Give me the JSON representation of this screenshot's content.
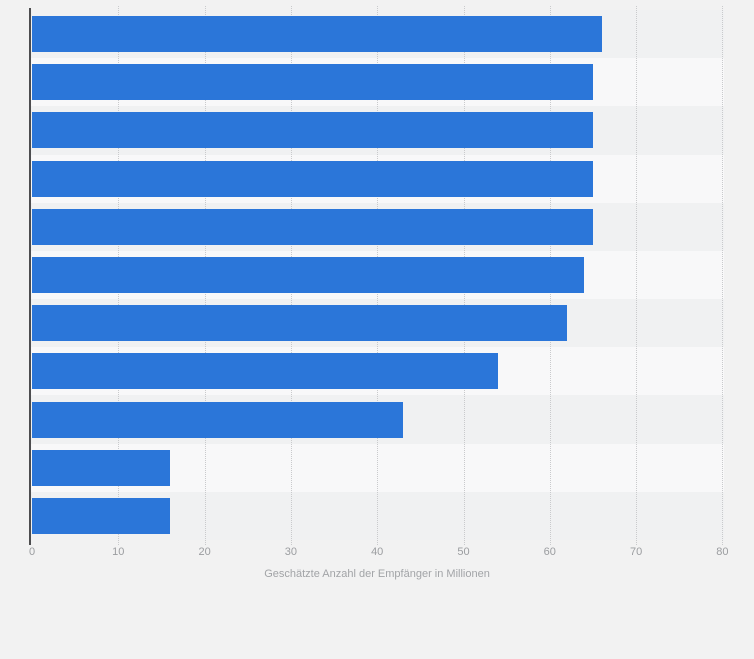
{
  "chart_data": {
    "type": "bar",
    "orientation": "horizontal",
    "title": "",
    "xlabel": "Geschätzte Anzahl der Empfänger in Millionen",
    "ylabel": "",
    "categories": [
      "",
      "",
      "",
      "",
      "",
      "",
      "",
      "",
      "",
      "",
      ""
    ],
    "values": [
      66,
      65,
      65,
      65,
      65,
      64,
      62,
      54,
      43,
      16,
      16
    ],
    "xlim": [
      0,
      80
    ],
    "xticks": [
      0,
      10,
      20,
      30,
      40,
      50,
      60,
      70,
      80
    ],
    "grid": "dotted-vertical",
    "legend": "none"
  },
  "colors": {
    "bar": "#2b76d9",
    "page_background": "#f2f2f2",
    "band_odd": "#f0f1f2",
    "band_even": "#f8f8f9",
    "axis_line": "#4d4d4f",
    "gridline": "#c9cacc",
    "tick_text": "#9b9da0",
    "axis_label_text": "#a2a4a7"
  }
}
